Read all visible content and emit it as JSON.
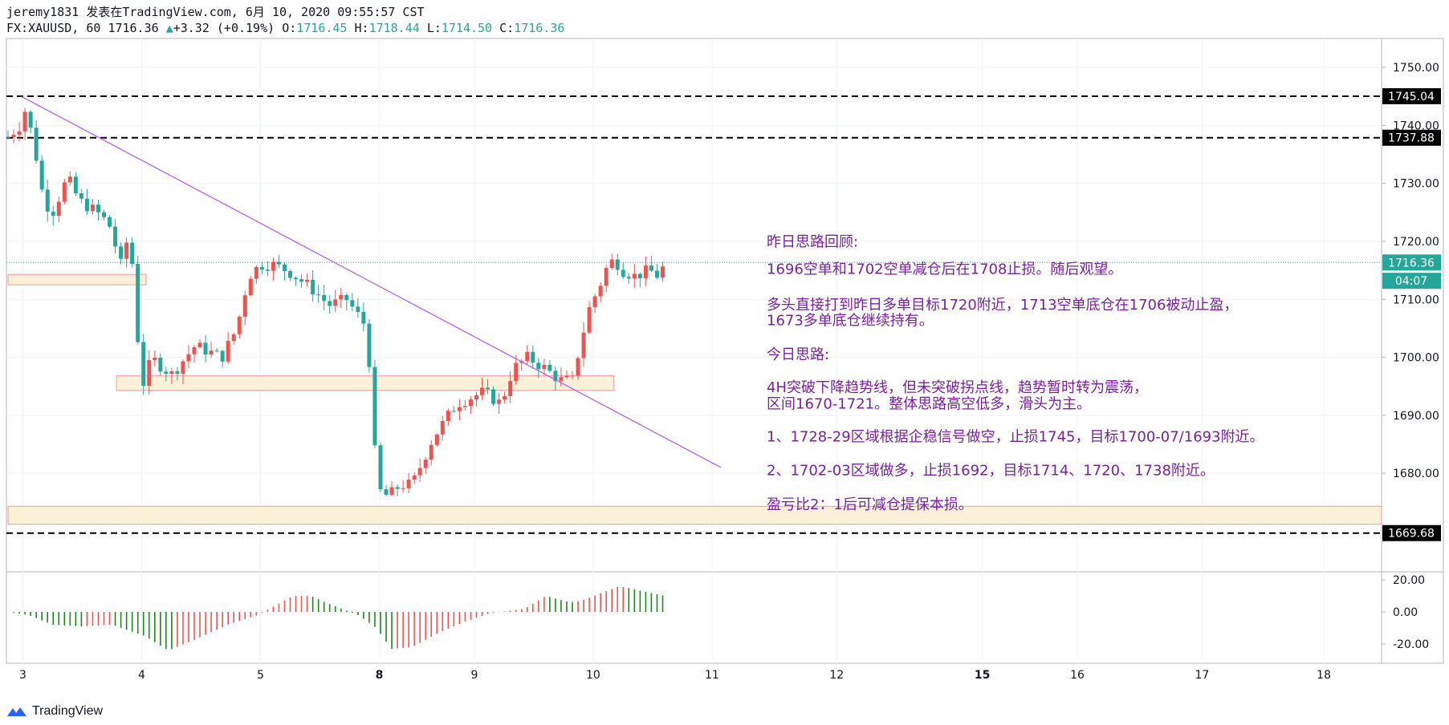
{
  "header": {
    "author": "jeremy1831",
    "published": "发表在TradingView.com, 6月 10, 2020 09:55:57 CST",
    "symbol": "FX:XAUUSD, 60",
    "last": "1716.36",
    "change": "+3.32 (+0.19%)",
    "open_label": "O:",
    "open": "1716.45",
    "high_label": "H:",
    "high": "1718.44",
    "low_label": "L:",
    "low": "1714.50",
    "close_label": "C:",
    "close": "1716.36"
  },
  "footer": {
    "brand": "TradingView"
  },
  "colors": {
    "up": "#ef5350",
    "down": "#26a69a",
    "osc_up": "#ef5350",
    "osc_down": "#1b8a1b",
    "trendline": "#b455f0",
    "note_text": "#7b1fa2",
    "zone_fill": "#fdf0d8",
    "zone_border": "#ef9a9a",
    "last_line": "#26a69a"
  },
  "chart_data": {
    "type": "candlestick",
    "title": "FX:XAUUSD, 60",
    "ylim": [
      1663,
      1755
    ],
    "y_ticks": [
      "1750.00",
      "1740.00",
      "1730.00",
      "1720.00",
      "1710.00",
      "1700.00",
      "1690.00",
      "1680.00"
    ],
    "x_ticks": [
      {
        "label": "3",
        "pos": 0.5,
        "bold": false
      },
      {
        "label": "4",
        "pos": 4.5,
        "bold": false
      },
      {
        "label": "5",
        "pos": 8.5,
        "bold": false
      },
      {
        "label": "8",
        "pos": 12.5,
        "bold": true
      },
      {
        "label": "9",
        "pos": 15.7,
        "bold": false
      },
      {
        "label": "10",
        "pos": 19.7,
        "bold": false
      },
      {
        "label": "11",
        "pos": 23.7,
        "bold": false
      },
      {
        "label": "12",
        "pos": 27.9,
        "bold": false
      },
      {
        "label": "15",
        "pos": 32.8,
        "bold": true
      },
      {
        "label": "16",
        "pos": 36.0,
        "bold": false
      },
      {
        "label": "17",
        "pos": 40.2,
        "bold": false
      },
      {
        "label": "18",
        "pos": 44.3,
        "bold": false
      }
    ],
    "price_labels": [
      {
        "text": "1745.04",
        "value": 1745.04,
        "style": "black"
      },
      {
        "text": "1737.88",
        "value": 1737.88,
        "style": "black"
      },
      {
        "text": "1716.36",
        "value": 1716.36,
        "style": "teal"
      },
      {
        "text": "04:07",
        "value": 1713.2,
        "style": "teal"
      },
      {
        "text": "1669.68",
        "value": 1669.68,
        "style": "black"
      }
    ],
    "horizontal_lines": [
      1745.04,
      1737.88,
      1669.68
    ],
    "last_price": 1716.36,
    "trendline": [
      {
        "t": 0.45,
        "p": 1745.0
      },
      {
        "t": 24.0,
        "p": 1681.0
      }
    ],
    "zones": [
      {
        "t0": 0.0,
        "t1": 4.65,
        "p0": 1712.5,
        "p1": 1714.3
      },
      {
        "t0": 3.65,
        "t1": 20.4,
        "p0": 1694.3,
        "p1": 1696.8
      },
      {
        "t0": 0.0,
        "t1": 47.7,
        "p0": 1671.2,
        "p1": 1674.3
      }
    ],
    "anchors": [
      [
        0,
        1738
      ],
      [
        0.4,
        1740
      ],
      [
        0.6,
        1743
      ],
      [
        0.9,
        1736
      ],
      [
        1.2,
        1727
      ],
      [
        1.5,
        1725
      ],
      [
        2.0,
        1731
      ],
      [
        2.4,
        1727
      ],
      [
        3.0,
        1725
      ],
      [
        3.4,
        1723
      ],
      [
        3.8,
        1716
      ],
      [
        4.1,
        1722
      ],
      [
        4.35,
        1704
      ],
      [
        4.6,
        1694
      ],
      [
        4.8,
        1700
      ],
      [
        5.5,
        1697
      ],
      [
        6.3,
        1702
      ],
      [
        7.2,
        1700
      ],
      [
        7.7,
        1705
      ],
      [
        8.1,
        1714
      ],
      [
        8.5,
        1716
      ],
      [
        8.9,
        1716
      ],
      [
        9.4,
        1715
      ],
      [
        10.2,
        1712
      ],
      [
        10.8,
        1709
      ],
      [
        11.4,
        1710
      ],
      [
        12.1,
        1705
      ],
      [
        12.3,
        1686
      ],
      [
        12.5,
        1677
      ],
      [
        12.8,
        1676
      ],
      [
        13.2,
        1678
      ],
      [
        13.6,
        1678
      ],
      [
        14.3,
        1686
      ],
      [
        15.1,
        1692
      ],
      [
        16.0,
        1694
      ],
      [
        16.6,
        1692
      ],
      [
        17.0,
        1698
      ],
      [
        17.5,
        1700
      ],
      [
        18.1,
        1698
      ],
      [
        18.6,
        1696
      ],
      [
        19.0,
        1696
      ],
      [
        19.3,
        1703
      ],
      [
        19.6,
        1709
      ],
      [
        19.9,
        1712
      ],
      [
        20.1,
        1715
      ],
      [
        20.4,
        1717
      ],
      [
        20.7,
        1715
      ],
      [
        21.1,
        1714
      ],
      [
        21.6,
        1715
      ],
      [
        21.9,
        1714
      ],
      [
        22.1,
        1716
      ]
    ],
    "oscillator": {
      "ylim": [
        -30,
        25
      ],
      "y_ticks": [
        "20.00",
        "0.00",
        "-20.00"
      ],
      "anchors": [
        [
          0,
          0
        ],
        [
          0.7,
          -2
        ],
        [
          1.5,
          -8
        ],
        [
          2.5,
          -9
        ],
        [
          3.5,
          -8
        ],
        [
          4.6,
          -15
        ],
        [
          5.4,
          -24
        ],
        [
          6.2,
          -18
        ],
        [
          7.4,
          -8
        ],
        [
          8.4,
          -2
        ],
        [
          9.6,
          10
        ],
        [
          10.2,
          10
        ],
        [
          10.8,
          5
        ],
        [
          11.8,
          -2
        ],
        [
          12.4,
          -10
        ],
        [
          12.9,
          -23
        ],
        [
          13.6,
          -22
        ],
        [
          14.5,
          -13
        ],
        [
          15.4,
          -6
        ],
        [
          16.2,
          -1
        ],
        [
          17.4,
          2
        ],
        [
          18.1,
          10
        ],
        [
          18.9,
          6
        ],
        [
          19.3,
          7
        ],
        [
          20.0,
          12
        ],
        [
          20.6,
          16
        ],
        [
          21.6,
          12
        ],
        [
          22.1,
          10
        ]
      ]
    },
    "notes": [
      {
        "text": "昨日思路回顾:",
        "value": 1719.9
      },
      {
        "text": "1696空单和1702空单减仓后在1708止损。随后观望。",
        "value": 1715.2
      },
      {
        "text": "多头直接打到昨日多单目标1720附近，1713空单底仓在1706被动止盈，",
        "value": 1709.1
      },
      {
        "text": "1673多单底仓继续持有。",
        "value": 1706.4
      },
      {
        "text": "今日思路:",
        "value": 1700.5
      },
      {
        "text": "4H突破下降趋势线，但未突破拐点线，趋势暂时转为震荡，",
        "value": 1694.8
      },
      {
        "text": "区间1670-1721。整体思路高空低多，滑头为主。",
        "value": 1692.0
      },
      {
        "text": "1、1728-29区域根据企稳信号做空，止损1745，目标1700-07/1693附近。",
        "value": 1686.3
      },
      {
        "text": "2、1702-03区域做多，止损1692，目标1714、1720、1738附近。",
        "value": 1680.5
      },
      {
        "text": "盈亏比2：1后可减仓提保本损。",
        "value": 1674.6
      }
    ]
  }
}
